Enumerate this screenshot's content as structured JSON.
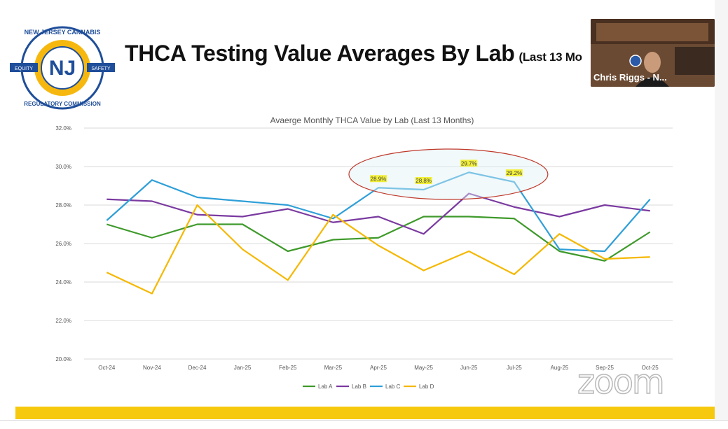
{
  "slide": {
    "title": "THCA Testing Value Averages By Lab",
    "title_suffix": "(Last 13 Mo",
    "logo_text_top": "NEW JERSEY CANNABIS",
    "logo_text_bottom": "REGULATORY COMMISSION",
    "logo_ribbon_left": "EQUITY",
    "logo_ribbon_right": "SAFETY",
    "logo_monogram": "NJ"
  },
  "webcam": {
    "name": "Chris Riggs - N..."
  },
  "watermark": "zoom",
  "colors": {
    "lab_a": "#3f9a2b",
    "lab_b": "#7a3aa0",
    "lab_c": "#2f9fd8",
    "lab_d": "#f5b800",
    "footer": "#f6c90e",
    "highlight": "#f3f03a",
    "ellipse": "#c0392b"
  },
  "chart_data": {
    "type": "line",
    "title": "Avaerge Monthly THCA Value by Lab (Last 13 Months)",
    "categories": [
      "Oct-24",
      "Nov-24",
      "Dec-24",
      "Jan-25",
      "Feb-25",
      "Mar-25",
      "Apr-25",
      "May-25",
      "Jun-25",
      "Jul-25",
      "Aug-25",
      "Sep-25",
      "Oct-25"
    ],
    "ylim": [
      20.0,
      32.0
    ],
    "yticks": [
      "20.0%",
      "22.0%",
      "24.0%",
      "26.0%",
      "28.0%",
      "30.0%",
      "32.0%"
    ],
    "grid": true,
    "legend_position": "bottom",
    "series": [
      {
        "name": "Lab A",
        "values": [
          27.0,
          26.3,
          27.0,
          27.0,
          25.6,
          26.2,
          26.3,
          27.4,
          27.4,
          27.3,
          25.6,
          25.1,
          26.6
        ]
      },
      {
        "name": "Lab B",
        "values": [
          28.3,
          28.2,
          27.5,
          27.4,
          27.8,
          27.1,
          27.4,
          26.5,
          28.6,
          27.9,
          27.4,
          28.0,
          27.7
        ]
      },
      {
        "name": "Lab C",
        "values": [
          27.2,
          29.3,
          28.4,
          28.2,
          28.0,
          27.3,
          28.9,
          28.8,
          29.7,
          29.2,
          25.7,
          25.6,
          28.3
        ]
      },
      {
        "name": "Lab D",
        "values": [
          24.5,
          23.4,
          28.0,
          25.7,
          24.1,
          27.5,
          25.9,
          24.6,
          25.6,
          24.4,
          26.5,
          25.2,
          25.3
        ]
      }
    ],
    "annotations": [
      {
        "series": "Lab C",
        "index": 6,
        "label": "28.9%"
      },
      {
        "series": "Lab C",
        "index": 7,
        "label": "28.8%"
      },
      {
        "series": "Lab C",
        "index": 8,
        "label": "29.7%"
      },
      {
        "series": "Lab C",
        "index": 9,
        "label": "29.2%"
      }
    ],
    "highlight_range": {
      "from_index": 6,
      "to_index": 9
    }
  }
}
